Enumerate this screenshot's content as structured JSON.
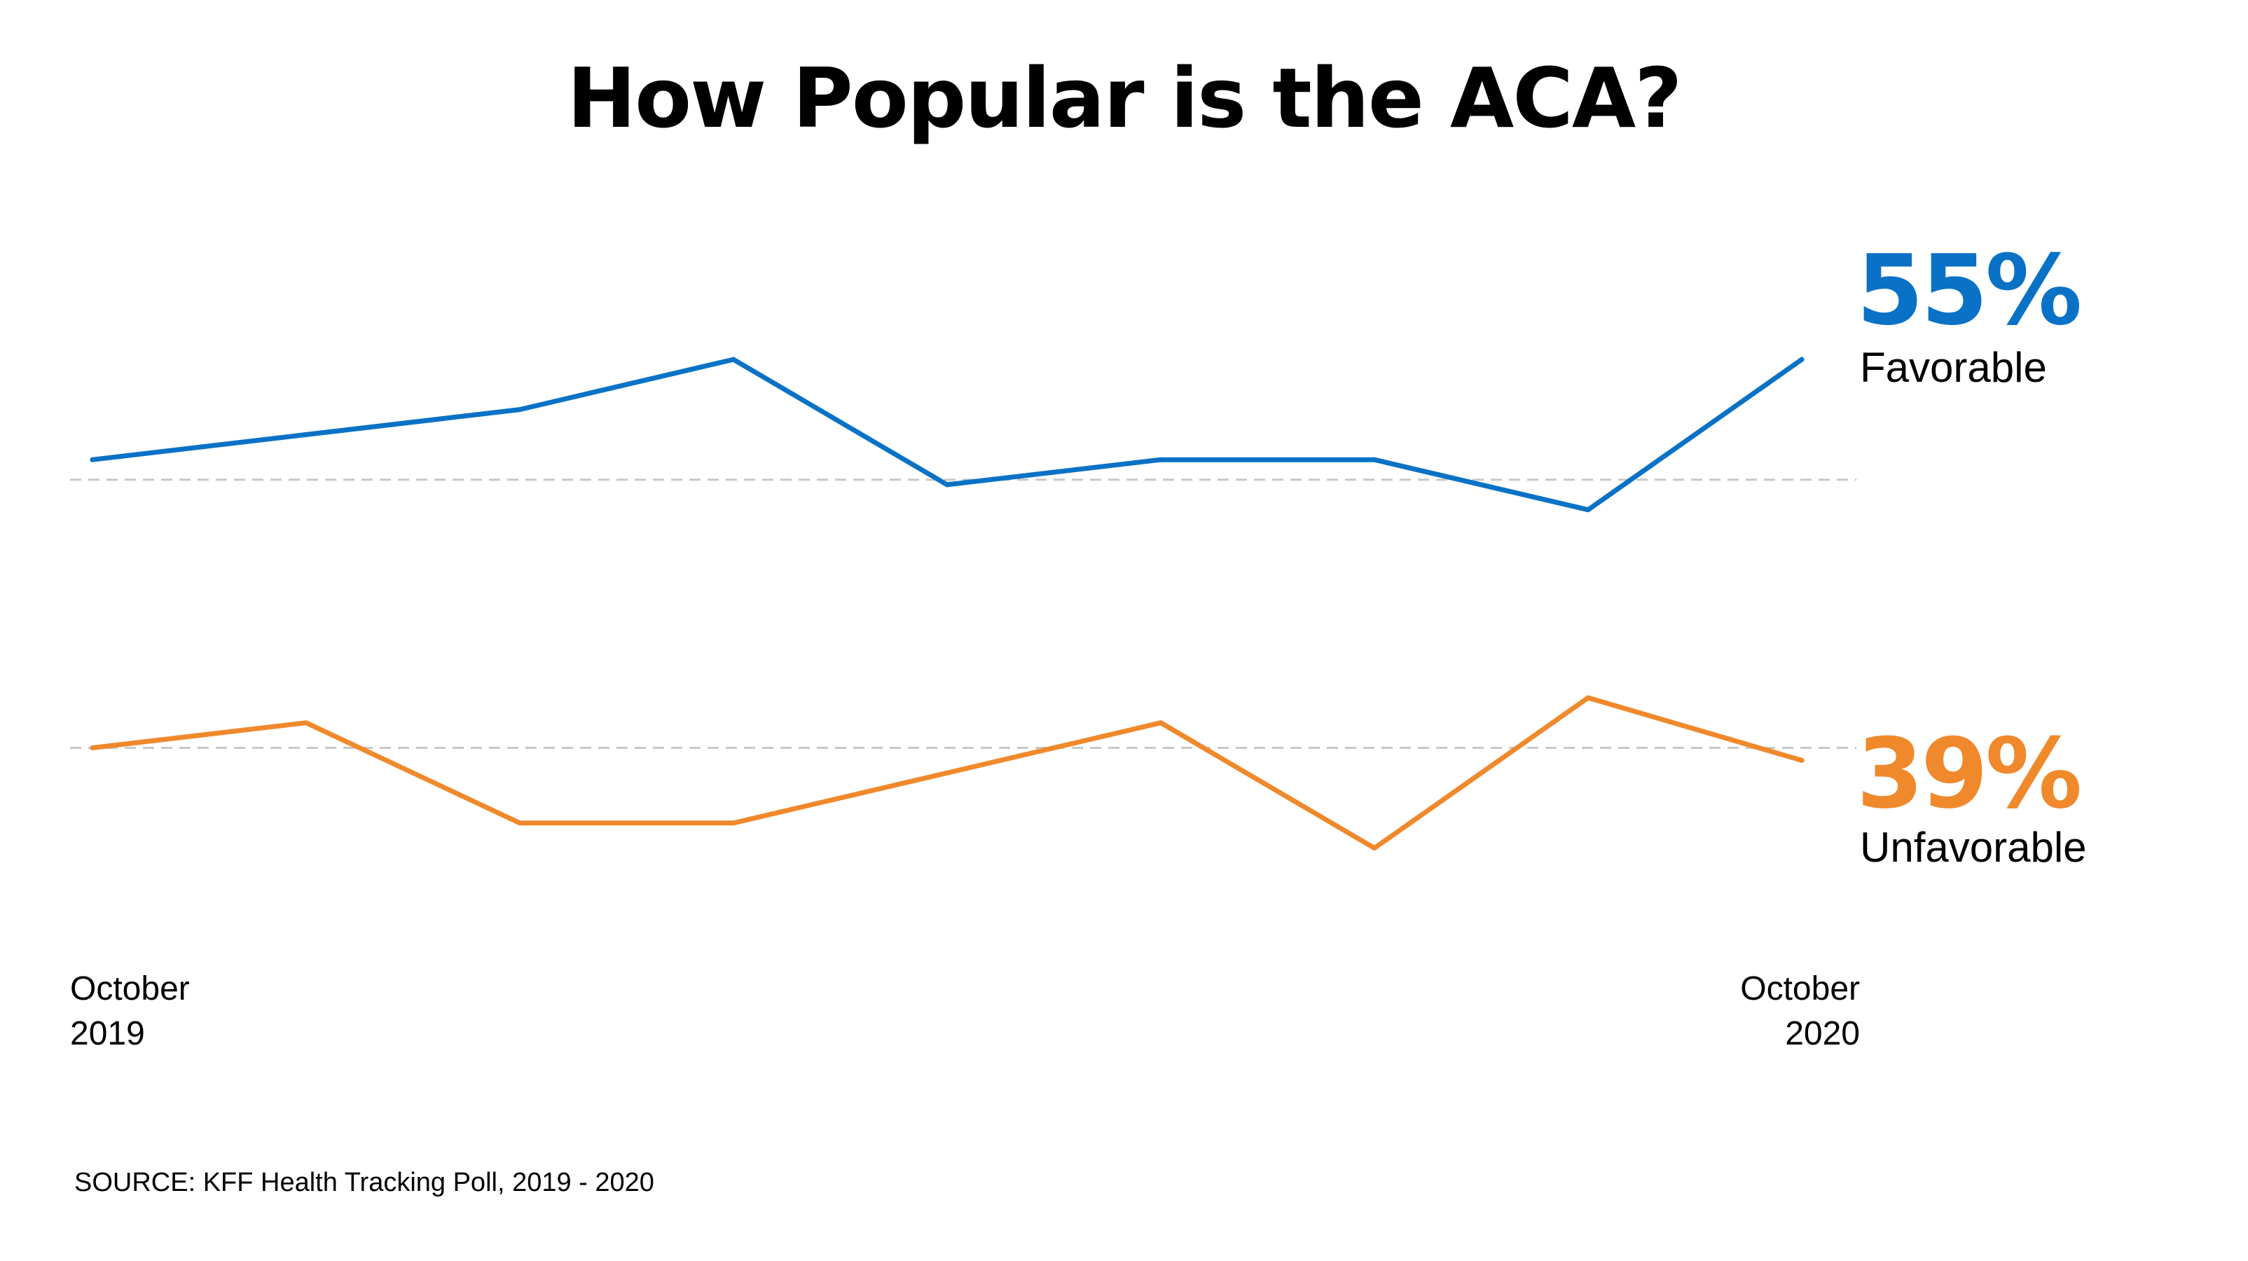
{
  "title": "How Popular is the ACA?",
  "source": "SOURCE: KFF Health Tracking Poll, 2019 - 2020",
  "x_axis": {
    "start": {
      "line1": "October",
      "line2": "2019"
    },
    "end": {
      "line1": "October",
      "line2": "2020"
    }
  },
  "end_labels": {
    "favorable": {
      "value": "55%",
      "label": "Favorable"
    },
    "unfavorable": {
      "value": "39%",
      "label": "Unfavorable"
    }
  },
  "colors": {
    "favorable": "#0a72c6",
    "unfavorable": "#f0892b",
    "reference_line": "#c8c8c8"
  },
  "chart_data": {
    "type": "line",
    "title": "How Popular is the ACA?",
    "x": [
      0,
      1,
      2,
      3,
      4,
      5,
      6,
      7,
      8
    ],
    "x_tick_labels": [
      "October 2019",
      "",
      "",
      "",
      "",
      "",
      "",
      "",
      "October 2020"
    ],
    "xlabel": "",
    "ylabel": "",
    "ylim": [
      33,
      59
    ],
    "grid": false,
    "reference_lines": [
      50.2,
      39.5
    ],
    "legend": "direct labels at right end",
    "series": [
      {
        "name": "Favorable",
        "color": "#0a72c6",
        "values": [
          51,
          52,
          53,
          55,
          50,
          51,
          51,
          49,
          55
        ]
      },
      {
        "name": "Unfavorable",
        "color": "#f0892b",
        "values": [
          39.5,
          40.5,
          36.5,
          36.5,
          38.5,
          40.5,
          35.5,
          41.5,
          39
        ]
      }
    ]
  }
}
